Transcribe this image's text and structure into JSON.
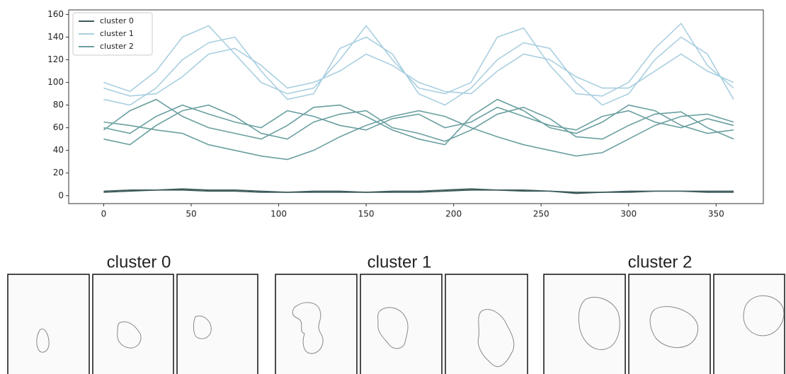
{
  "chart_data": {
    "type": "line",
    "x": [
      0,
      15,
      30,
      45,
      60,
      75,
      90,
      105,
      120,
      135,
      150,
      165,
      180,
      195,
      210,
      225,
      240,
      255,
      270,
      285,
      300,
      315,
      330,
      345,
      360
    ],
    "series": [
      {
        "name": "cluster 0",
        "color": "#3d5a5a",
        "values": [
          [
            3,
            4,
            5,
            5,
            4,
            4,
            3,
            3,
            4,
            4,
            3,
            3,
            3,
            4,
            5,
            5,
            4,
            4,
            2,
            3,
            3,
            4,
            4,
            3,
            3
          ],
          [
            4,
            5,
            5,
            6,
            5,
            5,
            4,
            3,
            3,
            3,
            3,
            4,
            4,
            5,
            6,
            5,
            5,
            4,
            3,
            3,
            4,
            4,
            4,
            4,
            4
          ]
        ]
      },
      {
        "name": "cluster 1",
        "color": "#a9cfe0",
        "values": [
          [
            100,
            92,
            110,
            140,
            150,
            125,
            100,
            90,
            95,
            120,
            150,
            120,
            95,
            90,
            100,
            140,
            148,
            115,
            90,
            88,
            100,
            130,
            152,
            115,
            95
          ],
          [
            85,
            80,
            95,
            120,
            135,
            140,
            110,
            85,
            90,
            130,
            140,
            125,
            90,
            80,
            95,
            120,
            135,
            130,
            100,
            80,
            90,
            120,
            140,
            125,
            85
          ],
          [
            95,
            88,
            90,
            105,
            125,
            130,
            115,
            95,
            100,
            110,
            125,
            115,
            100,
            92,
            90,
            110,
            125,
            120,
            105,
            95,
            95,
            110,
            125,
            110,
            100
          ]
        ]
      },
      {
        "name": "cluster 2",
        "color": "#6a9fa0",
        "values": [
          [
            60,
            55,
            70,
            80,
            72,
            65,
            60,
            75,
            70,
            62,
            58,
            68,
            72,
            60,
            65,
            78,
            70,
            62,
            58,
            70,
            75,
            65,
            60,
            68,
            62
          ],
          [
            50,
            45,
            62,
            75,
            80,
            70,
            55,
            50,
            65,
            72,
            75,
            60,
            55,
            48,
            58,
            72,
            78,
            68,
            52,
            50,
            62,
            72,
            74,
            60,
            50
          ],
          [
            65,
            62,
            58,
            55,
            45,
            40,
            35,
            32,
            40,
            52,
            62,
            70,
            75,
            70,
            60,
            52,
            45,
            40,
            35,
            38,
            50,
            62,
            70,
            72,
            65
          ],
          [
            58,
            75,
            85,
            70,
            60,
            55,
            50,
            62,
            78,
            80,
            70,
            58,
            50,
            45,
            70,
            85,
            75,
            60,
            55,
            65,
            80,
            75,
            62,
            55,
            58
          ]
        ]
      }
    ],
    "xlim": [
      -20,
      377
    ],
    "ylim": [
      -7,
      164
    ],
    "xticks": [
      0,
      50,
      100,
      150,
      200,
      250,
      300,
      350
    ],
    "yticks": [
      0,
      20,
      40,
      60,
      80,
      100,
      120,
      140,
      160
    ],
    "legend": "upper left"
  },
  "panels": [
    {
      "title": "cluster 0"
    },
    {
      "title": "cluster 1"
    },
    {
      "title": "cluster 2"
    }
  ]
}
